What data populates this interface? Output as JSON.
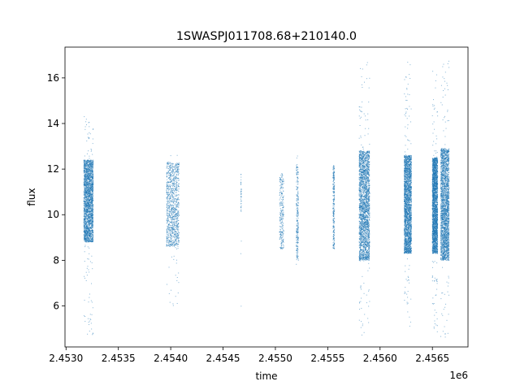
{
  "chart_data": {
    "type": "scatter",
    "title": "1SWASPJ011708.68+210140.0",
    "xlabel": "time",
    "ylabel": "flux",
    "x_offset_label": "1e6",
    "xlim": [
      2452990,
      2456840
    ],
    "ylim": [
      4.2,
      17.35
    ],
    "x_ticks": [
      2.453,
      2.4535,
      2.454,
      2.4545,
      2.455,
      2.4555,
      2.456,
      2.4565
    ],
    "x_tick_labels": [
      "2.4530",
      "2.4535",
      "2.4540",
      "2.4545",
      "2.4550",
      "2.4555",
      "2.4560",
      "2.4565"
    ],
    "y_ticks": [
      6,
      8,
      10,
      12,
      14,
      16
    ],
    "y_tick_labels": [
      "6",
      "8",
      "10",
      "12",
      "14",
      "16"
    ],
    "grid": false,
    "legend": "none",
    "marker_color": "#1f77b4",
    "series": [
      {
        "clusters": [
          {
            "x": [
              2453170,
              2453260
            ],
            "core": [
              8.8,
              12.4
            ],
            "tail": [
              4.7,
              14.5
            ],
            "density": "high"
          },
          {
            "x": [
              2453960,
              2454080
            ],
            "core": [
              8.6,
              12.3
            ],
            "tail": [
              6.0,
              12.7
            ],
            "density": "medium"
          },
          {
            "x": [
              2454670,
              2454675
            ],
            "core": [
              10.0,
              11.8
            ],
            "tail": [
              5.9,
              12.0
            ],
            "density": "sparse"
          },
          {
            "x": [
              2455040,
              2455080
            ],
            "core": [
              8.5,
              11.8
            ],
            "tail": [
              7.9,
              12.0
            ],
            "density": "low"
          },
          {
            "x": [
              2455200,
              2455220
            ],
            "core": [
              8.0,
              12.2
            ],
            "tail": [
              7.8,
              12.8
            ],
            "density": "low"
          },
          {
            "x": [
              2455550,
              2455565
            ],
            "core": [
              8.5,
              12.2
            ],
            "tail": [
              8.0,
              12.3
            ],
            "density": "low"
          },
          {
            "x": [
              2455800,
              2455900
            ],
            "core": [
              8.0,
              12.8
            ],
            "tail": [
              4.7,
              16.8
            ],
            "density": "high"
          },
          {
            "x": [
              2456230,
              2456300
            ],
            "core": [
              8.3,
              12.6
            ],
            "tail": [
              5.0,
              16.7
            ],
            "density": "high"
          },
          {
            "x": [
              2456500,
              2456550
            ],
            "core": [
              8.3,
              12.5
            ],
            "tail": [
              4.8,
              16.3
            ],
            "density": "high"
          },
          {
            "x": [
              2456580,
              2456660
            ],
            "core": [
              8.0,
              12.9
            ],
            "tail": [
              4.6,
              16.8
            ],
            "density": "high"
          }
        ]
      }
    ]
  }
}
